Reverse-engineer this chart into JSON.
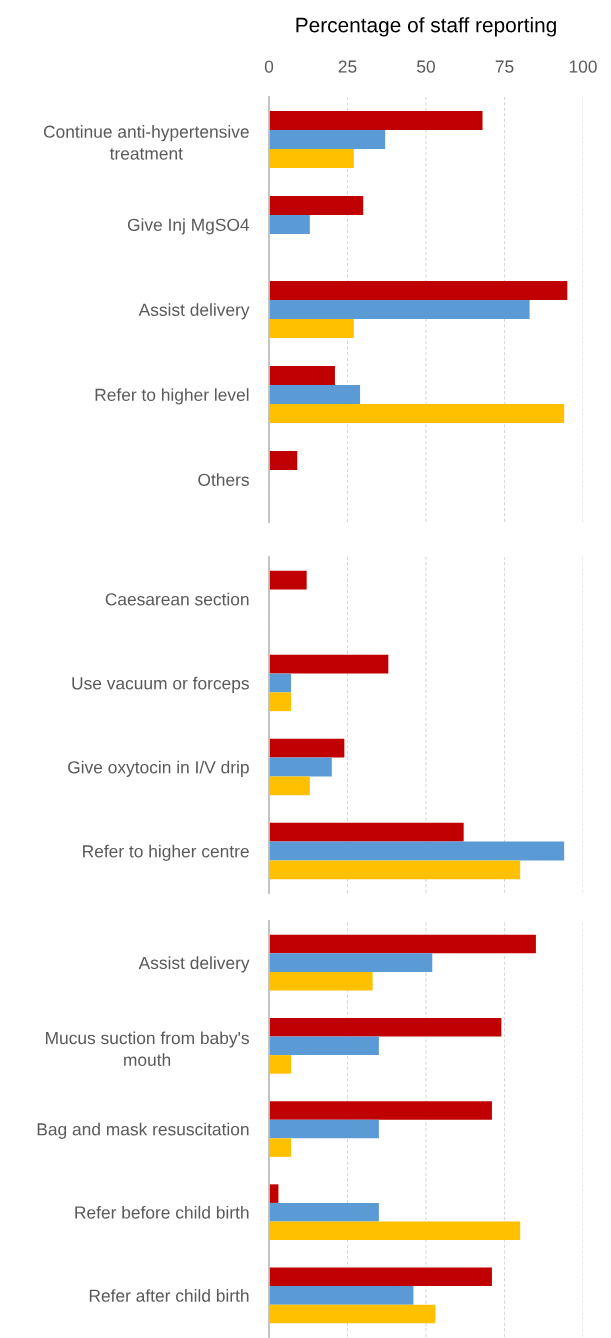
{
  "chart_data": [
    {
      "type": "bar",
      "orientation": "horizontal",
      "xlabel": "Percentage of staff reporting",
      "categories": [
        "Continue anti-hypertensive treatment",
        "Give Inj MgSO4",
        "Assist delivery",
        "Refer to higher level",
        "Others"
      ],
      "series": [
        {
          "color": "#c00000",
          "values": [
            68,
            30,
            95,
            21,
            9
          ]
        },
        {
          "color": "#5b9bd5",
          "values": [
            37,
            13,
            83,
            29,
            0
          ]
        },
        {
          "color": "#ffc000",
          "values": [
            27,
            0,
            27,
            94,
            0
          ]
        }
      ],
      "xlim": [
        0,
        100
      ],
      "xticks": [
        0,
        25,
        50,
        75,
        100
      ],
      "grid": "x"
    },
    {
      "type": "bar",
      "orientation": "horizontal",
      "categories": [
        "Caesarean section",
        "Use vacuum or forceps",
        "Give oxytocin in I/V drip",
        "Refer to higher centre"
      ],
      "series": [
        {
          "color": "#c00000",
          "values": [
            12,
            38,
            24,
            62
          ]
        },
        {
          "color": "#5b9bd5",
          "values": [
            0,
            7,
            20,
            94
          ]
        },
        {
          "color": "#ffc000",
          "values": [
            0,
            7,
            13,
            80
          ]
        }
      ],
      "xlim": [
        0,
        100
      ],
      "xticks": [
        0,
        25,
        50,
        75,
        100
      ],
      "grid": "x",
      "tick_labels": "y"
    },
    {
      "type": "bar",
      "orientation": "horizontal",
      "categories": [
        "Assist delivery",
        "Mucus suction from baby's mouth",
        "Bag and mask resuscitation",
        "Refer before child birth",
        "Refer after child birth"
      ],
      "series": [
        {
          "color": "#c00000",
          "values": [
            85,
            74,
            71,
            3,
            71
          ]
        },
        {
          "color": "#5b9bd5",
          "values": [
            52,
            35,
            35,
            35,
            46
          ]
        },
        {
          "color": "#ffc000",
          "values": [
            33,
            7,
            7,
            80,
            53
          ]
        }
      ],
      "xlim": [
        0,
        100
      ],
      "xticks": [
        0,
        25,
        50,
        75,
        100
      ],
      "grid": "x",
      "tick_labels": "y"
    }
  ]
}
